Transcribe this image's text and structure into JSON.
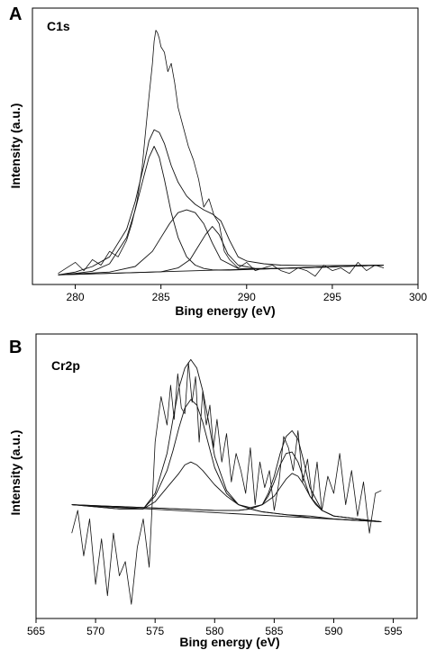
{
  "chart_data": [
    {
      "panel": "A",
      "type": "line",
      "label": "C1s",
      "xlabel": "Bing energy (eV)",
      "ylabel": "Intensity (a.u.)",
      "xlim": [
        277.5,
        300
      ],
      "ylim": [
        0,
        100
      ],
      "xticks": [
        280,
        285,
        290,
        295,
        300
      ],
      "grid": false,
      "series": [
        {
          "role": "raw",
          "x": [
            279.0,
            279.5,
            280.0,
            280.5,
            281.0,
            281.5,
            282.0,
            282.5,
            283.0,
            283.3,
            283.6,
            283.9,
            284.1,
            284.3,
            284.5,
            284.6,
            284.7,
            284.8,
            284.9,
            285.0,
            285.2,
            285.4,
            285.6,
            285.8,
            286.0,
            286.3,
            286.6,
            286.9,
            287.2,
            287.5,
            287.8,
            288.1,
            288.4,
            288.7,
            289.0,
            289.5,
            290.0,
            290.5,
            291.0,
            291.5,
            292.0,
            292.5,
            293.0,
            293.5,
            294.0,
            294.5,
            295.0,
            295.5,
            296.0,
            296.5,
            297.0,
            297.5,
            298.0
          ],
          "y": [
            4,
            6,
            8,
            5,
            9,
            7,
            12,
            10,
            16,
            22,
            30,
            42,
            55,
            68,
            80,
            88,
            92,
            91,
            89,
            86,
            84,
            77,
            80,
            73,
            64,
            57,
            50,
            45,
            38,
            28,
            31,
            25,
            22,
            12,
            9,
            6,
            8,
            5,
            6,
            7,
            5,
            4,
            6,
            5,
            3,
            7,
            5,
            6,
            4,
            8,
            5,
            7,
            6
          ]
        },
        {
          "role": "fit-envelope",
          "x": [
            279.0,
            280.0,
            281.0,
            282.0,
            283.0,
            283.5,
            284.0,
            284.3,
            284.6,
            284.9,
            285.2,
            285.6,
            286.0,
            286.5,
            287.0,
            287.5,
            288.0,
            288.5,
            289.0,
            289.5,
            290.0,
            291.0,
            292.0,
            294.0,
            296.0,
            298.0
          ],
          "y": [
            3.5,
            4.5,
            6.5,
            10,
            20,
            30,
            43,
            52,
            56,
            55,
            51,
            43,
            37,
            32,
            29,
            27,
            25.5,
            23,
            16,
            10,
            8.5,
            7.5,
            7,
            6.8,
            6.9,
            7
          ]
        },
        {
          "role": "component-1",
          "x": [
            279.0,
            280.0,
            281.0,
            282.0,
            283.0,
            283.5,
            284.0,
            284.3,
            284.6,
            284.9,
            285.2,
            285.6,
            286.0,
            286.5,
            287.0,
            287.5,
            288.0,
            288.5,
            289.0,
            290.0,
            291.0,
            292.0,
            294.0,
            296.0,
            298.0
          ],
          "y": [
            3.5,
            4.0,
            4.8,
            7.5,
            17,
            27,
            39,
            46,
            50,
            46,
            38,
            26,
            17,
            10,
            7,
            5.8,
            5.3,
            5.2,
            5.2,
            5.4,
            5.6,
            5.8,
            6.2,
            6.6,
            7
          ]
        },
        {
          "role": "component-2",
          "x": [
            279.0,
            282.0,
            283.5,
            284.5,
            285.0,
            285.5,
            286.0,
            286.5,
            287.0,
            287.5,
            288.0,
            288.5,
            289.5,
            291.0,
            294.0,
            298.0
          ],
          "y": [
            3.5,
            4.5,
            6.5,
            12,
            17,
            22,
            26,
            27,
            26,
            22,
            15,
            9,
            5.8,
            5.6,
            6.2,
            7
          ]
        },
        {
          "role": "component-3",
          "x": [
            279.0,
            283.0,
            285.0,
            286.0,
            286.7,
            287.2,
            287.6,
            288.0,
            288.4,
            288.9,
            289.5,
            290.5,
            292.0,
            294.0,
            298.0
          ],
          "y": [
            3.5,
            4.2,
            4.6,
            6,
            9,
            14,
            18,
            21,
            18,
            11,
            7,
            5.8,
            5.8,
            6.2,
            7
          ]
        },
        {
          "role": "baseline",
          "x": [
            279.0,
            298.0
          ],
          "y": [
            3.5,
            7
          ]
        }
      ]
    },
    {
      "panel": "B",
      "type": "line",
      "label": "Cr2p",
      "xlabel": "Bing energy (eV)",
      "ylabel": "Intensity (a.u.)",
      "xlim": [
        565,
        597
      ],
      "ylim": [
        0,
        100
      ],
      "xticks": [
        565,
        570,
        575,
        580,
        585,
        590,
        595
      ],
      "grid": false,
      "series": [
        {
          "role": "raw",
          "x": [
            568.0,
            568.5,
            569.0,
            569.5,
            570.0,
            570.5,
            571.0,
            571.5,
            572.0,
            572.5,
            573.0,
            573.5,
            574.0,
            574.5,
            575.0,
            575.5,
            576.0,
            576.3,
            576.6,
            576.9,
            577.2,
            577.5,
            577.8,
            578.1,
            578.4,
            578.7,
            579.0,
            579.3,
            579.6,
            579.9,
            580.2,
            580.6,
            581.0,
            581.4,
            581.8,
            582.2,
            582.6,
            583.0,
            583.4,
            583.8,
            584.2,
            584.6,
            585.0,
            585.4,
            585.8,
            586.2,
            586.6,
            587.0,
            587.4,
            587.8,
            588.2,
            588.6,
            589.0,
            589.5,
            590.0,
            590.5,
            591.0,
            591.5,
            592.0,
            592.5,
            593.0,
            593.5,
            594.0
          ],
          "y": [
            30,
            38,
            22,
            35,
            12,
            28,
            8,
            30,
            15,
            20,
            5,
            25,
            35,
            18,
            62,
            78,
            68,
            82,
            70,
            86,
            74,
            72,
            90,
            76,
            85,
            62,
            80,
            68,
            75,
            60,
            70,
            55,
            65,
            48,
            58,
            52,
            44,
            60,
            40,
            55,
            46,
            52,
            38,
            48,
            64,
            60,
            52,
            66,
            48,
            56,
            42,
            55,
            38,
            50,
            44,
            58,
            40,
            52,
            36,
            48,
            30,
            44,
            45
          ]
        },
        {
          "role": "fit-envelope",
          "x": [
            568.0,
            572.0,
            574.0,
            575.0,
            576.0,
            576.5,
            577.0,
            577.5,
            578.0,
            578.5,
            579.0,
            579.5,
            580.0,
            581.0,
            582.0,
            583.0,
            584.0,
            584.5,
            585.0,
            585.5,
            586.0,
            586.5,
            587.0,
            587.5,
            588.0,
            589.0,
            590.0,
            592.0,
            594.0
          ],
          "y": [
            40,
            38.5,
            38.5,
            44,
            58,
            70,
            81,
            88,
            91,
            88,
            80,
            69,
            57,
            45,
            40,
            39,
            40,
            44,
            50,
            58,
            64,
            66,
            63,
            55,
            46,
            38,
            36,
            35,
            34
          ]
        },
        {
          "role": "component-1",
          "x": [
            568.0,
            572.0,
            574.0,
            575.0,
            576.0,
            576.5,
            577.0,
            577.5,
            578.0,
            578.5,
            579.0,
            579.5,
            580.0,
            581.0,
            582.0,
            583.0,
            584.0,
            585.0,
            586.0,
            587.0,
            588.0,
            590.0,
            592.0,
            594.0
          ],
          "y": [
            40,
            38.5,
            38.5,
            43,
            52,
            59,
            67,
            74,
            77,
            75,
            69,
            61,
            53,
            44,
            40,
            38.5,
            37.5,
            37,
            36.5,
            36,
            35.5,
            35,
            34.5,
            34
          ]
        },
        {
          "role": "component-2",
          "x": [
            568.0,
            572.0,
            574.0,
            575.0,
            576.0,
            577.0,
            577.5,
            578.0,
            578.5,
            579.0,
            580.0,
            581.0,
            582.0,
            583.0,
            584.0,
            586.0,
            588.0,
            590.0,
            592.0,
            594.0
          ],
          "y": [
            40,
            39,
            38.5,
            41,
            46,
            51,
            54,
            55,
            54,
            52,
            47,
            43,
            40,
            38.5,
            37.5,
            36.5,
            36,
            35,
            34.5,
            34
          ]
        },
        {
          "role": "component-3",
          "x": [
            568.0,
            580.0,
            582.0,
            583.0,
            584.0,
            584.5,
            585.0,
            585.5,
            586.0,
            586.5,
            587.0,
            587.5,
            588.0,
            588.5,
            589.0,
            590.0,
            592.0,
            594.0
          ],
          "y": [
            40,
            38,
            38,
            38.5,
            40,
            43,
            48,
            54,
            58,
            58.5,
            55,
            49,
            43,
            40,
            38,
            36,
            35,
            34
          ]
        },
        {
          "role": "component-4",
          "x": [
            568.0,
            580.0,
            582.0,
            583.0,
            584.0,
            585.0,
            585.5,
            586.0,
            586.5,
            587.0,
            587.5,
            588.0,
            589.0,
            590.0,
            592.0,
            594.0
          ],
          "y": [
            40,
            38,
            38,
            38.5,
            40,
            43,
            46,
            49,
            51,
            50,
            47,
            43,
            38,
            36,
            35,
            34
          ]
        },
        {
          "role": "baseline",
          "x": [
            568.0,
            594.0
          ],
          "y": [
            40,
            34
          ]
        }
      ]
    }
  ]
}
